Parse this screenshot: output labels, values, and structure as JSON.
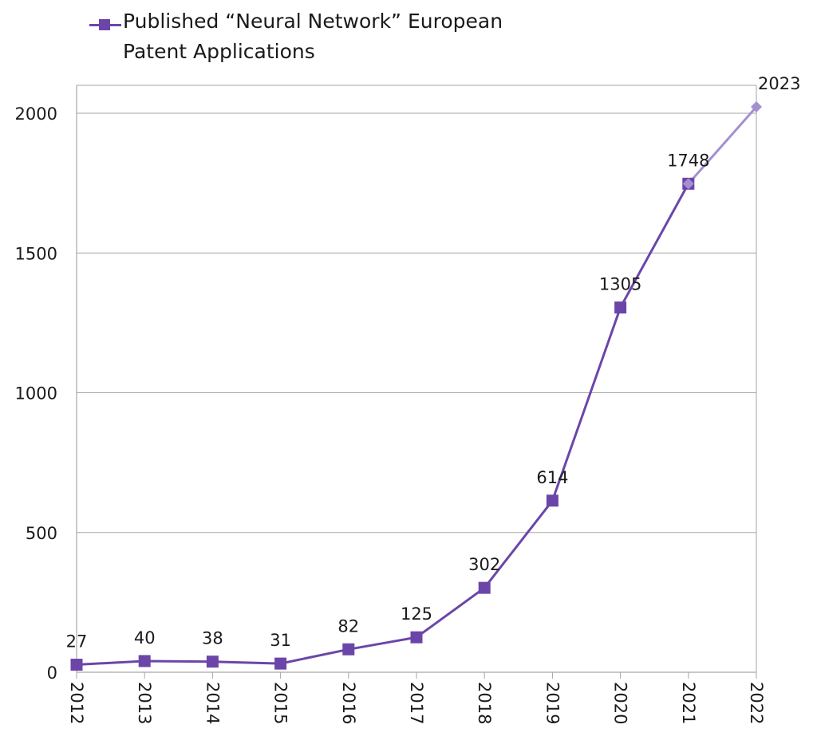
{
  "legend": {
    "series_label": "Published “Neural Network” European Patent Applications"
  },
  "colors": {
    "series": "#6b46a8",
    "projected": "#a48fd0",
    "grid": "#a6a6a6",
    "axis": "#a6a6a6"
  },
  "chart_data": {
    "type": "line",
    "title": "",
    "xlabel": "",
    "ylabel": "",
    "ylim": [
      0,
      2100
    ],
    "yticks": [
      0,
      500,
      1000,
      1500,
      2000
    ],
    "grid": true,
    "legend_position": "top-left",
    "categories": [
      "2012",
      "2013",
      "2014",
      "2015",
      "2016",
      "2017",
      "2018",
      "2019",
      "2020",
      "2021",
      "2022"
    ],
    "series": [
      {
        "name": "Published “Neural Network” European Patent Applications",
        "values": [
          27,
          40,
          38,
          31,
          82,
          125,
          302,
          614,
          1305,
          1748,
          null
        ],
        "marker": "square"
      },
      {
        "values": [
          null,
          null,
          null,
          null,
          null,
          null,
          null,
          null,
          null,
          1748,
          2023
        ],
        "marker": "diamond",
        "style": "lighter"
      }
    ],
    "data_labels": [
      "27",
      "40",
      "38",
      "31",
      "82",
      "125",
      "302",
      "614",
      "1305",
      "1748",
      "2023"
    ]
  }
}
